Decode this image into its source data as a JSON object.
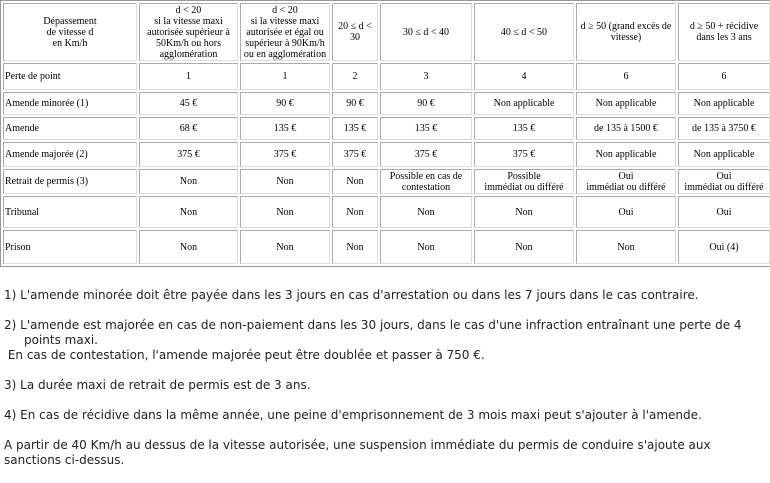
{
  "table": {
    "header": [
      "Dépassement\nde vitesse d\nen Km/h",
      "d < 20\nsi la vitesse maxi autorisée supérieur à 50Km/h ou hors agglomération",
      "d < 20\nsi la vitesse maxi autorisée et égal ou supérieur à 90Km/h ou en agglomération",
      "20 ≤ d < 30",
      "30 ≤ d < 40",
      "40 ≤ d < 50",
      "d ≥ 50 (grand excès de vitesse)",
      "d ≥ 50 + récidive dans les 3 ans"
    ],
    "rows": [
      [
        "Perte de point",
        "1",
        "1",
        "2",
        "3",
        "4",
        "6",
        "6"
      ],
      [
        "Amende minorée (1)",
        "45 €",
        "90 €",
        "90 €",
        "90 €",
        "Non applicable",
        "Non applicable",
        "Non applicable"
      ],
      [
        "Amende",
        "68 €",
        "135 €",
        "135 €",
        "135 €",
        "135 €",
        "de 135 à 1500 €",
        "de 135 à 3750 €"
      ],
      [
        "Amende majorée (2)",
        "375 €",
        "375 €",
        "375 €",
        "375 €",
        "375 €",
        "Non applicable",
        "Non applicable"
      ],
      [
        "Retrait de permis (3)",
        "Non",
        "Non",
        "Non",
        "Possible en cas de contestation",
        "Possible\nimmédiat ou différé",
        "Oui\nimmédiat ou différé",
        "Oui\nimmédiat ou différé"
      ],
      [
        "Tribunal",
        "Non",
        "Non",
        "Non",
        "Non",
        "Non",
        "Oui",
        "Oui"
      ],
      [
        "Prison",
        "Non",
        "Non",
        "Non",
        "Non",
        "Non",
        "Non",
        "Oui (4)"
      ]
    ]
  },
  "notes": {
    "n1": "1) L'amende minorée doit être payée dans les 3 jours en cas d'arrestation ou dans les 7 jours dans le cas contraire.",
    "n2": "2) L'amende est majorée en cas de non-paiement dans les 30 jours, dans le cas d'une infraction entraînant une perte de 4 points maxi.",
    "n2b": " En cas de contestation, l'amende majorée peut être doublée et passer à 750 €.",
    "n3": "3) La durée maxi de retrait de permis est de 3 ans.",
    "n4": "4) En cas de récidive dans la même année, une peine d'emprisonnement de 3 mois maxi peut s'ajouter à l'amende.",
    "n5": "A partir de 40 Km/h au dessus de la vitesse autorisée, une suspension immédiate du permis de conduire s'ajoute aux sanctions ci-dessus."
  }
}
